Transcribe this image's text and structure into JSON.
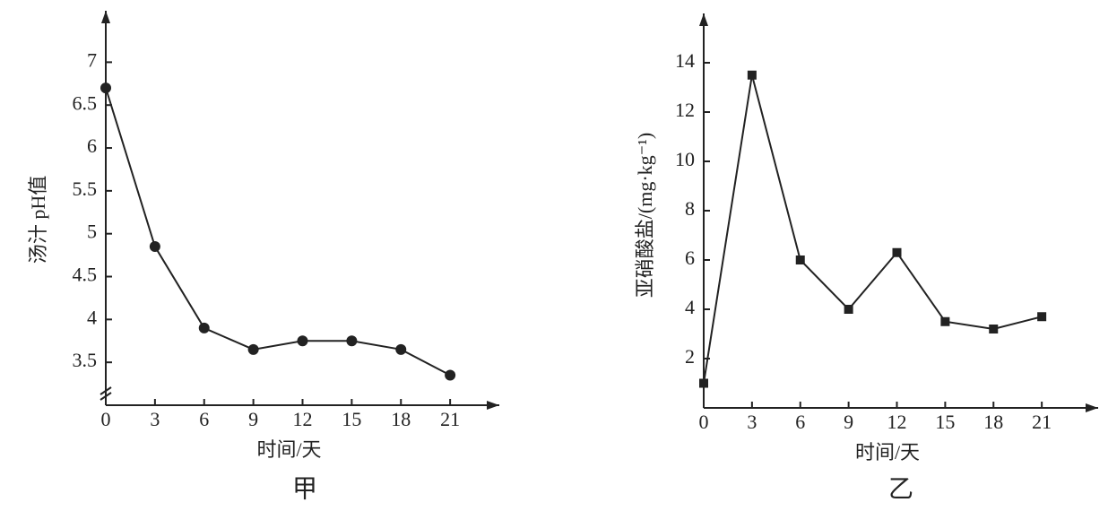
{
  "chart_data": [
    {
      "type": "line",
      "caption": "甲",
      "y_label": "汤汁 pH值",
      "x_label": "时间/天",
      "x": [
        0,
        3,
        6,
        9,
        12,
        15,
        18,
        21
      ],
      "xlim": [
        0,
        24
      ],
      "xticks": [
        0,
        3,
        6,
        9,
        12,
        15,
        18,
        21
      ],
      "ylim": [
        3,
        7.6
      ],
      "yticks": [
        3.5,
        4,
        4.5,
        5,
        5.5,
        6,
        6.5,
        7
      ],
      "axis_break": true,
      "series": [
        {
          "color": "#222222",
          "marker": "circle",
          "values": [
            6.7,
            4.85,
            3.9,
            3.65,
            3.75,
            3.75,
            3.65,
            3.35
          ]
        }
      ]
    },
    {
      "type": "line",
      "caption": "乙",
      "y_label": "亚硝酸盐/(mg·kg⁻¹)",
      "x_label": "时间/天",
      "x": [
        0,
        3,
        6,
        9,
        12,
        15,
        18,
        21
      ],
      "xlim": [
        0,
        24.5
      ],
      "xticks": [
        0,
        3,
        6,
        9,
        12,
        15,
        18,
        21
      ],
      "ylim": [
        0,
        16
      ],
      "yticks": [
        2,
        4,
        6,
        8,
        10,
        12,
        14
      ],
      "axis_break": false,
      "series": [
        {
          "color": "#222222",
          "marker": "square",
          "values": [
            1,
            13.5,
            6,
            4,
            6.3,
            3.5,
            3.2,
            3.7
          ]
        }
      ]
    }
  ]
}
